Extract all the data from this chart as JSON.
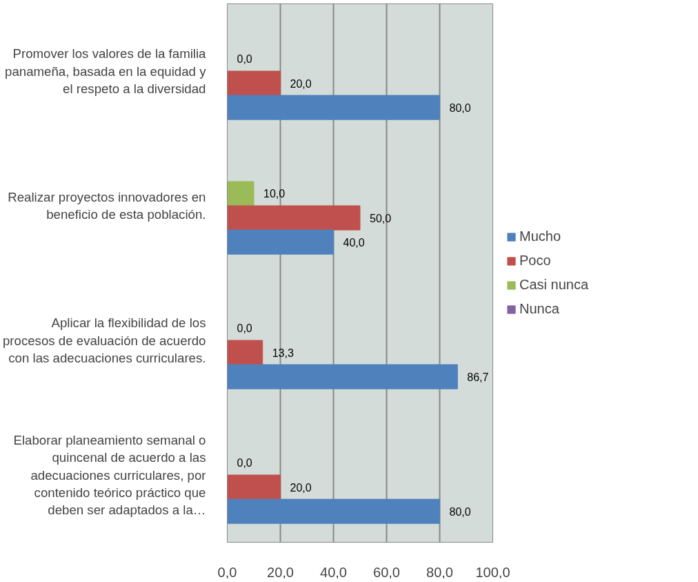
{
  "chart_data": {
    "type": "bar",
    "orientation": "horizontal",
    "categories": [
      "Promover los valores de la familia\npanameña, basada en la equidad y\nel respeto a la diversidad",
      "Realizar proyectos innovadores en\nbeneficio de esta población.",
      "Aplicar la flexibilidad de los\nprocesos de evaluación de acuerdo\ncon las adecuaciones curriculares.",
      "Elaborar planeamiento semanal o\nquincenal de acuerdo a las\nadecuaciones curriculares, por\ncontenido teórico práctico que\ndeben ser adaptados a la…"
    ],
    "series": [
      {
        "name": "Nunca",
        "color": "#8064a2",
        "values": [
          null,
          null,
          null,
          null
        ],
        "value_labels": [
          null,
          null,
          null,
          null
        ]
      },
      {
        "name": "Casi nunca",
        "color": "#9bbb59",
        "values": [
          0.0,
          10.0,
          0.0,
          0.0
        ],
        "value_labels": [
          "0,0",
          "10,0",
          "0,0",
          "0,0"
        ]
      },
      {
        "name": "Poco",
        "color": "#c0504d",
        "values": [
          20.0,
          50.0,
          13.3,
          20.0
        ],
        "value_labels": [
          "20,0",
          "50,0",
          "13,3",
          "20,0"
        ]
      },
      {
        "name": "Mucho",
        "color": "#4f81bd",
        "values": [
          80.0,
          40.0,
          86.7,
          80.0
        ],
        "value_labels": [
          "80,0",
          "40,0",
          "86,7",
          "80,0"
        ]
      }
    ],
    "xlim": [
      0,
      100
    ],
    "xticks": [
      {
        "value": 0,
        "label": "0,0"
      },
      {
        "value": 20,
        "label": "20,0"
      },
      {
        "value": 40,
        "label": "40,0"
      },
      {
        "value": 60,
        "label": "60,0"
      },
      {
        "value": 80,
        "label": "80,0"
      },
      {
        "value": 100,
        "label": "100,0"
      }
    ],
    "grid": "x",
    "legend": "right"
  }
}
